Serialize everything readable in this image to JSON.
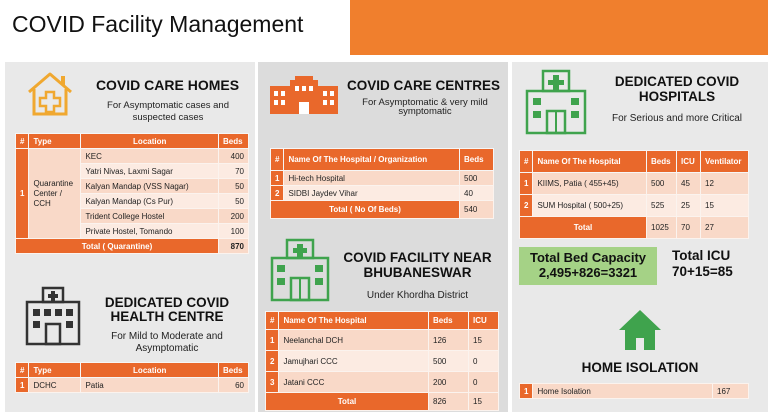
{
  "page_title": "COVID Facility Management",
  "care_homes": {
    "title": "COVID CARE HOMES",
    "subtitle": "For Asymptomatic cases and suspected cases",
    "headers": [
      "#",
      "Type",
      "Location",
      "Beds"
    ],
    "index": "1",
    "type": "Quarantine Center / CCH",
    "rows": [
      {
        "location": "KEC",
        "beds": "400"
      },
      {
        "location": "Yatri Nivas, Laxmi Sagar",
        "beds": "70"
      },
      {
        "location": "Kalyan Mandap (VSS Nagar)",
        "beds": "50"
      },
      {
        "location": "Kalyan Mandap (Cs Pur)",
        "beds": "50"
      },
      {
        "location": "Trident College Hostel",
        "beds": "200"
      },
      {
        "location": "Private Hostel, Tomando",
        "beds": "100"
      }
    ],
    "total_label": "Total ( Quarantine)",
    "total_beds": "870"
  },
  "health_centre": {
    "title_line1": "DEDICATED COVID",
    "title_line2": "HEALTH CENTRE",
    "subtitle_line1": "For Mild to Moderate and",
    "subtitle_line2": "Asymptomatic",
    "headers": [
      "#",
      "Type",
      "Location",
      "Beds"
    ],
    "row": {
      "index": "1",
      "type": "DCHC",
      "location": "Patia",
      "beds": "60"
    }
  },
  "care_centres": {
    "title": "COVID CARE CENTRES",
    "subtitle_line1": "For Asymptomatic & very mild",
    "subtitle_line2": "symptomatic",
    "headers": [
      "#",
      "Name Of The Hospital / Organization",
      "Beds"
    ],
    "rows": [
      {
        "index": "1",
        "name": "Hi-tech Hospital",
        "beds": "500"
      },
      {
        "index": "2",
        "name": "SIDBI Jaydev Vihar",
        "beds": "40"
      }
    ],
    "total_label": "Total ( No Of Beds)",
    "total_beds": "540"
  },
  "near_bbsr": {
    "title_line1": "COVID FACILITY NEAR",
    "title_line2": "BHUBANESWAR",
    "subtitle": "Under Khordha District",
    "headers": [
      "#",
      "Name Of The Hospital",
      "Beds",
      "ICU"
    ],
    "rows": [
      {
        "index": "1",
        "name": "Neelanchal DCH",
        "beds": "126",
        "icu": "15"
      },
      {
        "index": "2",
        "name": "Jamujhari CCC",
        "beds": "500",
        "icu": "0"
      },
      {
        "index": "3",
        "name": "Jatani CCC",
        "beds": "200",
        "icu": "0"
      }
    ],
    "total_label": "Total",
    "total_beds": "826",
    "total_icu": "15"
  },
  "dedicated_hospitals": {
    "title_line1": "DEDICATED COVID",
    "title_line2": "HOSPITALS",
    "subtitle": "For Serious and more Critical",
    "headers": [
      "#",
      "Name Of The Hospital",
      "Beds",
      "ICU",
      "Ventilator"
    ],
    "rows": [
      {
        "index": "1",
        "name": "KIIMS, Patia ( 455+45)",
        "beds": "500",
        "icu": "45",
        "vent": "12"
      },
      {
        "index": "2",
        "name": "SUM Hospital ( 500+25)",
        "beds": "525",
        "icu": "25",
        "vent": "15"
      }
    ],
    "total_label": "Total",
    "total_beds": "1025",
    "total_icu": "70",
    "total_vent": "27"
  },
  "summary": {
    "bed_capacity_label": "Total Bed Capacity",
    "bed_capacity_value": "2,495+826=3321",
    "icu_label": "Total ICU",
    "icu_value": "70+15=85"
  },
  "home_isolation": {
    "title": "HOME ISOLATION",
    "row": {
      "index": "1",
      "name": "Home Isolation",
      "value": "167"
    }
  },
  "colors": {
    "accent": "#f07f2d",
    "table_header": "#e9682b",
    "icon_orange": "#e9682b",
    "icon_green": "#3fa34d",
    "summary_green": "#a5d286"
  }
}
